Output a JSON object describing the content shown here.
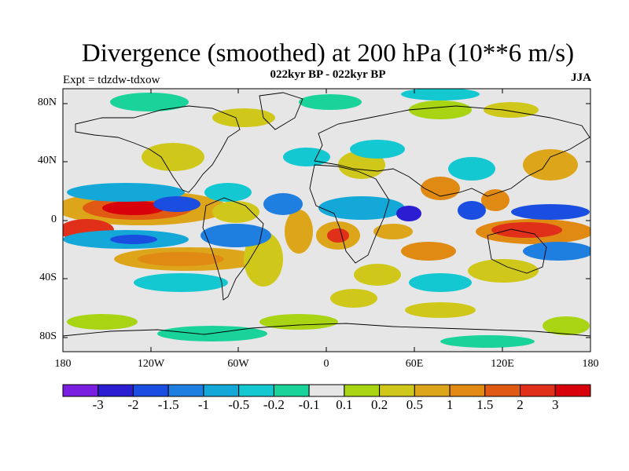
{
  "title": "Divergence (smoothed) at 200 hPa (10**6 m/s)",
  "subtitle": "022kyr BP - 022kyr BP",
  "expt_label": "Expt = tdzdw-tdxow",
  "season": "JJA",
  "lat_labels": [
    "80N",
    "40N",
    "0",
    "40S",
    "80S"
  ],
  "lon_labels": [
    "180",
    "120W",
    "60W",
    "0",
    "60E",
    "120E",
    "180"
  ],
  "colorbar": {
    "labels": [
      "-3",
      "-2",
      "-1.5",
      "-1",
      "-0.5",
      "-0.2",
      "-0.1",
      "0.1",
      "0.2",
      "0.5",
      "1",
      "1.5",
      "2",
      "3"
    ],
    "colors": [
      "#7a1fe0",
      "#2a1ed0",
      "#1a4ee0",
      "#1f7fe0",
      "#14a8d8",
      "#13c8d0",
      "#1ad39a",
      "#e6e6e6",
      "#a8d414",
      "#cfc81a",
      "#dca51a",
      "#e08a14",
      "#e05a14",
      "#e0301a",
      "#d8000a"
    ]
  },
  "colors": {
    "ocean_background": "#e6e6e6",
    "coastline": "#000000"
  }
}
